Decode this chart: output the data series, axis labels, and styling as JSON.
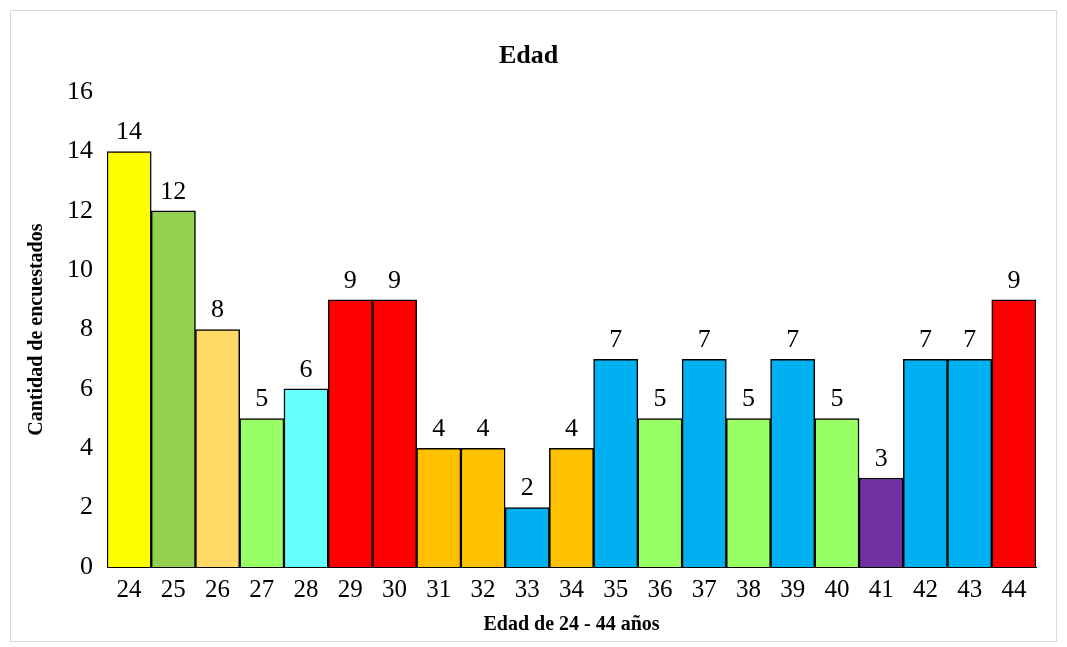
{
  "chart_data": {
    "type": "bar",
    "title": "Edad",
    "xlabel": "Edad de 24 - 44 años",
    "ylabel": "Cantidad de encuestados",
    "categories": [
      "24",
      "25",
      "26",
      "27",
      "28",
      "29",
      "30",
      "31",
      "32",
      "33",
      "34",
      "35",
      "36",
      "37",
      "38",
      "39",
      "40",
      "41",
      "42",
      "43",
      "44"
    ],
    "values": [
      14,
      12,
      8,
      5,
      6,
      9,
      9,
      4,
      4,
      2,
      4,
      7,
      5,
      7,
      5,
      7,
      5,
      3,
      7,
      7,
      9
    ],
    "colors": [
      "#ffff00",
      "#92d050",
      "#ffd966",
      "#99ff66",
      "#66ffff",
      "#ff0000",
      "#ff0000",
      "#ffc000",
      "#ffc000",
      "#00b0f0",
      "#ffc000",
      "#00b0f0",
      "#99ff66",
      "#00b0f0",
      "#99ff66",
      "#00b0f0",
      "#99ff66",
      "#7030a0",
      "#00b0f0",
      "#00b0f0",
      "#ff0000"
    ],
    "ylim": [
      0,
      16
    ],
    "yticks": [
      0,
      2,
      4,
      6,
      8,
      10,
      12,
      14,
      16
    ],
    "grid": false,
    "legend": false,
    "data_labels": true
  }
}
